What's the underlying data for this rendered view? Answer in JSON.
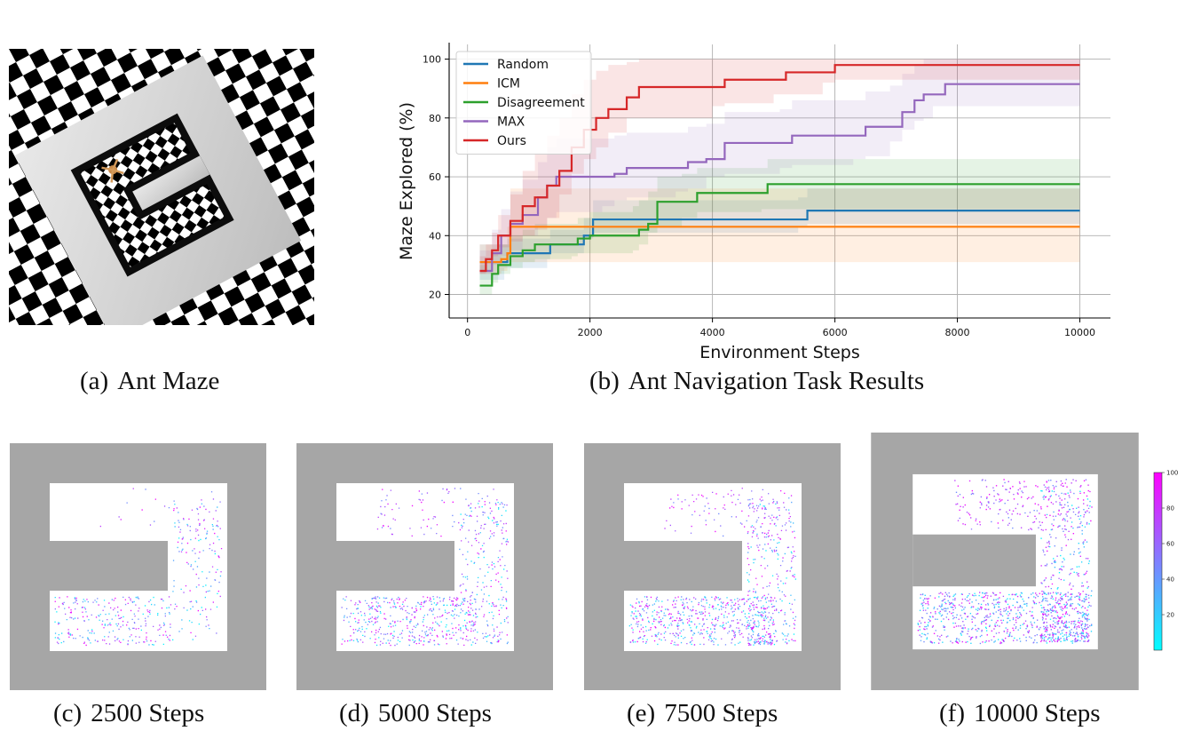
{
  "captions": {
    "a": {
      "tag": "(a)",
      "text": "Ant Maze"
    },
    "b": {
      "tag": "(b)",
      "text": "Ant Navigation Task Results"
    },
    "c": {
      "tag": "(c)",
      "text": "2500 Steps"
    },
    "d": {
      "tag": "(d)",
      "text": "5000 Steps"
    },
    "e": {
      "tag": "(e)",
      "text": "7500 Steps"
    },
    "f": {
      "tag": "(f)",
      "text": "10000 Steps"
    }
  },
  "colors": {
    "gray_wall": "#a6a6a6",
    "floor": "#ffffff",
    "cool_low": "#00ffff",
    "cool_high": "#ff00ff"
  },
  "colorbar": {
    "ticks": [
      "20",
      "40",
      "60",
      "80",
      "100"
    ],
    "tick_values": [
      20,
      40,
      60,
      80,
      100
    ],
    "min": 0,
    "max": 100
  },
  "heatmap_densities": [
    0.35,
    0.6,
    0.75,
    1.0
  ],
  "chart_data": {
    "type": "line",
    "title": "",
    "xlabel": "Environment Steps",
    "ylabel": "Maze Explored (%)",
    "xlim": [
      -300,
      10500
    ],
    "ylim": [
      12,
      105
    ],
    "xticks": [
      0,
      2000,
      4000,
      6000,
      8000,
      10000
    ],
    "yticks": [
      20,
      40,
      60,
      80,
      100
    ],
    "grid": true,
    "legend_position": "top-left",
    "series": [
      {
        "name": "Random",
        "color": "#1f77b4",
        "x": [
          200,
          600,
          650,
          1300,
          1350,
          1900,
          2050,
          5400,
          5550,
          10000
        ],
        "y": [
          31,
          31,
          34,
          34,
          37,
          40,
          45.5,
          45.5,
          48.5,
          48.5
        ],
        "band_lo": [
          25,
          25,
          29,
          29,
          32,
          34,
          39,
          41,
          43,
          44
        ],
        "band_hi": [
          37,
          37,
          39,
          39,
          42,
          46,
          52,
          53,
          56,
          55
        ]
      },
      {
        "name": "ICM",
        "color": "#ff7f0e",
        "x": [
          200,
          550,
          650,
          700,
          10000
        ],
        "y": [
          31,
          32,
          34,
          43,
          43
        ],
        "band_lo": [
          26,
          27,
          28,
          31,
          31
        ],
        "band_hi": [
          37,
          37,
          43,
          56,
          55
        ]
      },
      {
        "name": "Disagreement",
        "color": "#2ca02c",
        "x": [
          200,
          400,
          500,
          700,
          900,
          1100,
          1700,
          1800,
          2000,
          2700,
          2800,
          2950,
          3100,
          3500,
          3750,
          4800,
          4900,
          10000
        ],
        "y": [
          23,
          27,
          30,
          33,
          35,
          37,
          37,
          39,
          40,
          40,
          42,
          44,
          51.5,
          51.5,
          54.5,
          54.5,
          57.5,
          57.5
        ],
        "band_lo": [
          16,
          20,
          24,
          27,
          29,
          31,
          32,
          33,
          34,
          34,
          35,
          37,
          41,
          43,
          46,
          48,
          49,
          49
        ],
        "band_hi": [
          30,
          34,
          37,
          40,
          42,
          44,
          44,
          46,
          48,
          50,
          52,
          55,
          60,
          61,
          63,
          63,
          66,
          66
        ]
      },
      {
        "name": "MAX",
        "color": "#9467bd",
        "x": [
          200,
          400,
          550,
          700,
          900,
          1150,
          1300,
          1450,
          1600,
          2200,
          2400,
          2600,
          3400,
          3600,
          3900,
          4200,
          5100,
          5300,
          6300,
          6500,
          6900,
          7100,
          7300,
          7450,
          7600,
          7800,
          10000
        ],
        "y": [
          28,
          34,
          40,
          44,
          47,
          53,
          57,
          60,
          60,
          60,
          61,
          63,
          63,
          65,
          66,
          71.5,
          71.5,
          74,
          74,
          77,
          77,
          82,
          86,
          88,
          88,
          91.5,
          91.5
        ],
        "band_lo": [
          22,
          27,
          30,
          33,
          35,
          40,
          43,
          46,
          48,
          48,
          50,
          52,
          53,
          55,
          56,
          60,
          61,
          63,
          64,
          66,
          67,
          72,
          76,
          79,
          80,
          84,
          84
        ],
        "band_hi": [
          35,
          42,
          49,
          55,
          59,
          65,
          70,
          73,
          73,
          73,
          74,
          75,
          75,
          77,
          78,
          82,
          83,
          86,
          86,
          89,
          91,
          95,
          98,
          100,
          100,
          100,
          100
        ]
      },
      {
        "name": "Ours",
        "color": "#d62728",
        "x": [
          200,
          300,
          400,
          500,
          700,
          900,
          1100,
          1300,
          1500,
          1700,
          1900,
          2100,
          2300,
          2600,
          2800,
          4000,
          4200,
          5000,
          5200,
          5800,
          6000,
          10000
        ],
        "y": [
          28,
          32,
          35,
          40,
          45,
          50,
          53,
          57,
          62,
          70,
          76,
          80,
          83,
          87,
          90.5,
          90.5,
          93,
          93,
          95.5,
          95.5,
          98,
          98
        ],
        "band_lo": [
          24,
          27,
          30,
          33,
          36,
          38,
          40,
          42,
          46,
          54,
          61,
          66,
          70,
          75,
          80,
          80,
          84,
          85,
          88,
          88,
          92,
          93
        ],
        "band_hi": [
          33,
          37,
          41,
          47,
          54,
          62,
          68,
          74,
          80,
          88,
          93,
          96,
          98,
          99,
          100,
          100,
          100,
          100,
          100,
          100,
          100,
          100
        ]
      }
    ]
  }
}
